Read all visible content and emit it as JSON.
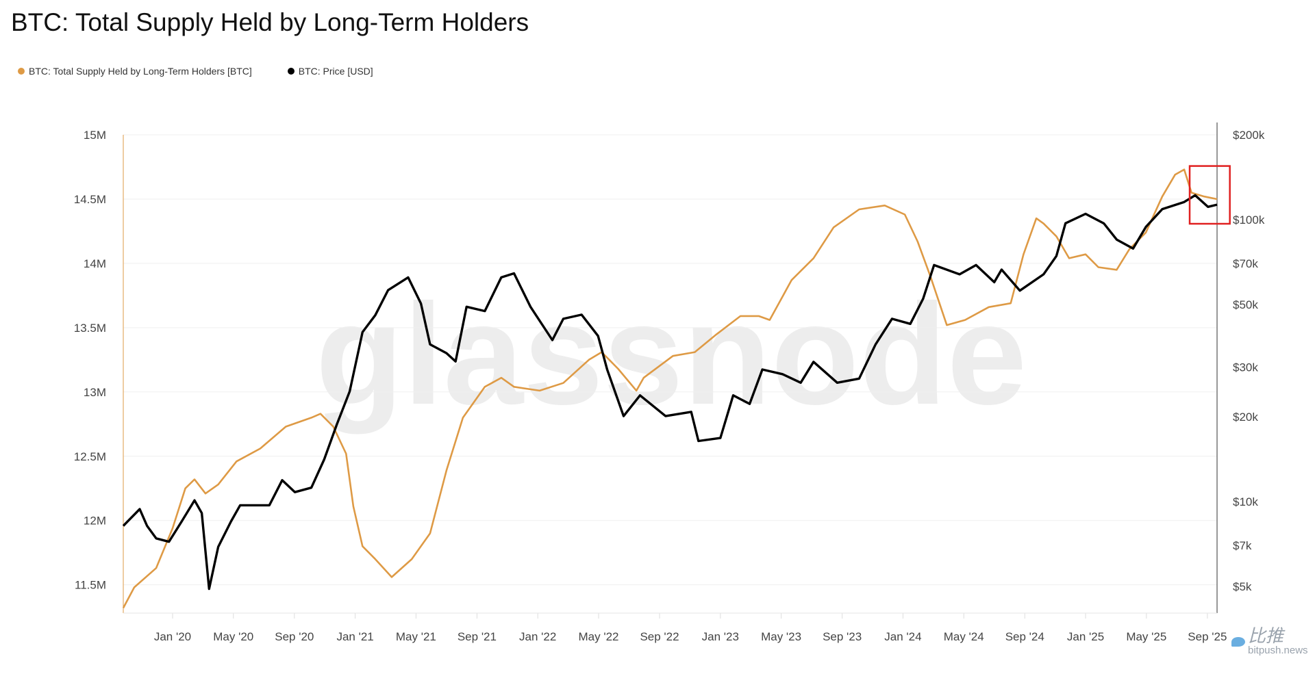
{
  "chart_data": {
    "type": "line",
    "title": "BTC: Total Supply Held by Long-Term Holders",
    "legend_position": "top-left",
    "xlabel": "",
    "x_ticks": [
      "Jan '20",
      "May '20",
      "Sep '20",
      "Jan '21",
      "May '21",
      "Sep '21",
      "Jan '22",
      "May '22",
      "Sep '22",
      "Jan '23",
      "May '23",
      "Sep '23",
      "Jan '24",
      "May '24",
      "Sep '24",
      "Jan '25",
      "May '25",
      "Sep '25"
    ],
    "x_tick_values": [
      2020.0,
      2020.333,
      2020.667,
      2021.0,
      2021.333,
      2021.667,
      2022.0,
      2022.333,
      2022.667,
      2023.0,
      2023.333,
      2023.667,
      2024.0,
      2024.333,
      2024.667,
      2025.0,
      2025.333,
      2025.667
    ],
    "xlim": [
      2019.73,
      2025.72
    ],
    "y_left": {
      "label": "",
      "ylim": [
        11.28,
        15.0
      ],
      "ticks": [
        15,
        14.5,
        14,
        13.5,
        13,
        12.5,
        12,
        11.5
      ],
      "tick_labels": [
        "15M",
        "14.5M",
        "14M",
        "13.5M",
        "13M",
        "12.5M",
        "12M",
        "11.5M"
      ],
      "scale": "linear",
      "unit": "M BTC"
    },
    "y_right": {
      "label": "",
      "ylim": [
        4020,
        200000
      ],
      "ticks": [
        200000,
        100000,
        70000,
        50000,
        30000,
        20000,
        10000,
        7000,
        5000
      ],
      "tick_labels": [
        "$200k",
        "$100k",
        "$70k",
        "$50k",
        "$30k",
        "$20k",
        "$10k",
        "$7k",
        "$5k"
      ],
      "scale": "log"
    },
    "grid": true,
    "series": [
      {
        "name": "BTC: Total Supply Held by Long-Term Holders [BTC]",
        "axis": "left",
        "color": "#de9a45",
        "x": [
          2019.73,
          2019.79,
          2019.91,
          2020.0,
          2020.07,
          2020.12,
          2020.18,
          2020.25,
          2020.35,
          2020.48,
          2020.62,
          2020.76,
          2020.81,
          2020.88,
          2020.95,
          2020.99,
          2021.04,
          2021.11,
          2021.2,
          2021.31,
          2021.41,
          2021.5,
          2021.59,
          2021.71,
          2021.8,
          2021.87,
          2022.01,
          2022.14,
          2022.28,
          2022.35,
          2022.44,
          2022.54,
          2022.58,
          2022.74,
          2022.86,
          2022.98,
          2023.11,
          2023.21,
          2023.27,
          2023.39,
          2023.51,
          2023.62,
          2023.76,
          2023.9,
          2024.01,
          2024.08,
          2024.15,
          2024.24,
          2024.34,
          2024.47,
          2024.59,
          2024.66,
          2024.73,
          2024.77,
          2024.84,
          2024.91,
          2025.0,
          2025.07,
          2025.17,
          2025.24,
          2025.33,
          2025.42,
          2025.49,
          2025.54,
          2025.58,
          2025.65,
          2025.72
        ],
        "y": [
          11.32,
          11.48,
          11.63,
          11.94,
          12.25,
          12.32,
          12.21,
          12.28,
          12.46,
          12.56,
          12.73,
          12.8,
          12.83,
          12.73,
          12.52,
          12.11,
          11.8,
          11.7,
          11.56,
          11.7,
          11.9,
          12.39,
          12.8,
          13.04,
          13.11,
          13.04,
          13.01,
          13.07,
          13.25,
          13.31,
          13.18,
          13.01,
          13.11,
          13.28,
          13.31,
          13.45,
          13.59,
          13.59,
          13.56,
          13.87,
          14.04,
          14.28,
          14.42,
          14.45,
          14.38,
          14.17,
          13.9,
          13.52,
          13.56,
          13.66,
          13.69,
          14.07,
          14.35,
          14.31,
          14.21,
          14.04,
          14.07,
          13.97,
          13.95,
          14.11,
          14.24,
          14.52,
          14.69,
          14.73,
          14.55,
          14.52,
          14.5
        ]
      },
      {
        "name": "BTC: Price [USD]",
        "axis": "right",
        "color": "#000000",
        "x": [
          2019.73,
          2019.82,
          2019.86,
          2019.91,
          2019.98,
          2020.05,
          2020.12,
          2020.16,
          2020.2,
          2020.25,
          2020.32,
          2020.37,
          2020.53,
          2020.6,
          2020.67,
          2020.76,
          2020.83,
          2020.9,
          2020.97,
          2021.04,
          2021.11,
          2021.18,
          2021.29,
          2021.36,
          2021.41,
          2021.5,
          2021.55,
          2021.61,
          2021.71,
          2021.8,
          2021.87,
          2021.96,
          2022.08,
          2022.14,
          2022.24,
          2022.33,
          2022.38,
          2022.47,
          2022.56,
          2022.7,
          2022.84,
          2022.88,
          2023.0,
          2023.07,
          2023.16,
          2023.23,
          2023.34,
          2023.44,
          2023.51,
          2023.64,
          2023.76,
          2023.85,
          2023.94,
          2024.04,
          2024.11,
          2024.17,
          2024.31,
          2024.4,
          2024.5,
          2024.54,
          2024.64,
          2024.77,
          2024.84,
          2024.89,
          2025.0,
          2025.1,
          2025.17,
          2025.26,
          2025.33,
          2025.42,
          2025.54,
          2025.6,
          2025.67,
          2025.72
        ],
        "y": [
          8200,
          9400,
          8200,
          7400,
          7200,
          8500,
          10100,
          9100,
          4900,
          6900,
          8500,
          9700,
          9700,
          11900,
          10800,
          11200,
          14100,
          18800,
          24600,
          39900,
          45800,
          56200,
          62400,
          50400,
          36100,
          33600,
          31400,
          49100,
          47400,
          62400,
          64500,
          49100,
          37400,
          44500,
          46000,
          38700,
          29400,
          20100,
          23800,
          20100,
          20800,
          16400,
          16800,
          23800,
          22200,
          29400,
          28300,
          26400,
          31300,
          26400,
          27300,
          36100,
          44500,
          42700,
          52400,
          69000,
          64000,
          69000,
          60000,
          66500,
          56000,
          64000,
          74300,
          97100,
          104900,
          97000,
          85000,
          79000,
          94200,
          109000,
          115500,
          122000,
          111000,
          113000
        ]
      }
    ],
    "annotations": [
      {
        "type": "highlight-box",
        "color": "#e02020",
        "x_range": [
          2025.57,
          2025.79
        ],
        "price_range": [
          96700,
          155000
        ]
      }
    ],
    "watermark": "glassnode"
  },
  "source_badge": {
    "cn": "比推",
    "en": "bitpush.news"
  }
}
